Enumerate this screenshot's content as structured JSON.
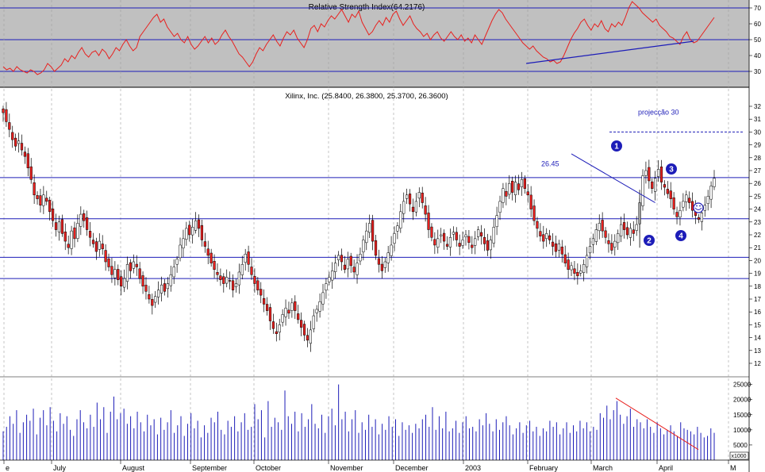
{
  "chart_data": [
    {
      "type": "line",
      "title": "Relative Strength Index(64.2176)",
      "yticks": [
        30,
        40,
        50,
        60,
        70
      ],
      "ylim": [
        20,
        75
      ],
      "reference_lines": [
        30,
        50,
        70
      ],
      "series": [
        {
          "color": "#e8201e",
          "values": [
            33,
            31,
            32,
            30,
            33,
            31,
            30,
            29,
            31,
            30,
            28,
            29,
            31,
            35,
            33,
            30,
            32,
            34,
            38,
            36,
            40,
            38,
            42,
            45,
            41,
            39,
            42,
            43,
            40,
            44,
            42,
            38,
            41,
            45,
            43,
            47,
            50,
            46,
            43,
            45,
            52,
            55,
            58,
            61,
            64,
            66,
            61,
            63,
            58,
            55,
            52,
            54,
            50,
            48,
            52,
            47,
            44,
            46,
            49,
            52,
            48,
            51,
            47,
            49,
            53,
            56,
            52,
            49,
            45,
            41,
            39,
            36,
            33,
            36,
            41,
            45,
            43,
            47,
            50,
            53,
            49,
            46,
            51,
            55,
            53,
            56,
            51,
            48,
            45,
            50,
            57,
            59,
            55,
            60,
            58,
            62,
            65,
            63,
            66,
            69,
            65,
            61,
            66,
            64,
            68,
            61,
            57,
            53,
            55,
            59,
            62,
            59,
            64,
            61,
            66,
            68,
            63,
            59,
            62,
            65,
            60,
            57,
            55,
            52,
            54,
            50,
            53,
            55,
            51,
            49,
            52,
            55,
            52,
            50,
            53,
            49,
            51,
            48,
            53,
            50,
            47,
            52,
            57,
            62,
            66,
            69,
            67,
            63,
            60,
            57,
            54,
            51,
            48,
            46,
            44,
            46,
            43,
            41,
            39,
            38,
            36,
            37,
            35,
            36,
            40,
            45,
            50,
            54,
            57,
            61,
            63,
            59,
            56,
            60,
            58,
            62,
            57,
            55,
            60,
            58,
            61,
            59,
            64,
            70,
            74,
            72,
            70,
            67,
            65,
            63,
            61,
            63,
            59,
            57,
            55,
            52,
            51,
            49,
            47,
            52,
            55,
            50,
            48,
            49,
            52,
            55,
            58,
            61,
            64
          ]
        }
      ],
      "trendline": {
        "from": [
          153,
          35
        ],
        "to": [
          202,
          49
        ],
        "color": "#1d1db8"
      }
    },
    {
      "type": "candlestick",
      "title": "Xilinx, Inc. (25.8400, 26.3800, 25.3700, 26.3600)",
      "ylim": [
        12,
        33
      ],
      "yticks": [
        12,
        13,
        14,
        15,
        16,
        17,
        18,
        19,
        20,
        21,
        22,
        23,
        24,
        25,
        26,
        27,
        28,
        29,
        30,
        31,
        32
      ],
      "xticks": [
        "e",
        "July",
        "August",
        "September",
        "October",
        "November",
        "December",
        "2003",
        "February",
        "March",
        "April",
        "M"
      ],
      "colors": {
        "up": "#ffffff",
        "down": "#e8201e",
        "outline": "#000000",
        "hline": "#1d1db8",
        "trend": "#1d1db8"
      },
      "horizontal_lines": [
        26.45,
        23.25,
        20.25,
        18.6
      ],
      "projection": {
        "value": 30,
        "label": "projecção 30"
      },
      "level_label": "26.45",
      "wave_labels": [
        "1",
        "2",
        "3",
        "4"
      ],
      "trendline": {
        "from": [
          173,
          28.3
        ],
        "to": [
          200,
          24.5
        ]
      },
      "closes": [
        31.5,
        30.8,
        30.2,
        29.4,
        28.9,
        29.3,
        28.6,
        28.1,
        27.2,
        26.3,
        25.1,
        24.8,
        24.3,
        25.1,
        24.6,
        23.8,
        23.1,
        22.4,
        23.0,
        22.1,
        21.5,
        21.0,
        22.3,
        21.7,
        22.9,
        23.6,
        23.1,
        22.4,
        21.8,
        21.3,
        20.7,
        21.5,
        20.9,
        19.9,
        19.5,
        18.9,
        19.3,
        18.5,
        18.0,
        18.6,
        19.7,
        19.2,
        19.9,
        19.5,
        18.6,
        18.0,
        17.6,
        17.0,
        16.5,
        17.2,
        17.7,
        18.1,
        17.6,
        18.2,
        18.9,
        19.5,
        20.1,
        21.2,
        21.7,
        22.5,
        22.0,
        22.6,
        23.1,
        22.5,
        21.6,
        21.1,
        20.4,
        19.8,
        19.3,
        18.9,
        18.5,
        18.2,
        18.7,
        18.4,
        17.7,
        18.2,
        19.1,
        19.7,
        20.5,
        19.7,
        18.9,
        18.2,
        17.7,
        17.3,
        16.6,
        16.1,
        15.3,
        14.7,
        14.3,
        15.0,
        15.8,
        16.3,
        15.9,
        16.7,
        16.1,
        15.4,
        14.8,
        14.2,
        13.8,
        14.6,
        15.7,
        16.2,
        16.8,
        17.5,
        18.2,
        18.7,
        19.2,
        19.8,
        20.4,
        19.9,
        19.3,
        20.1,
        19.6,
        19.1,
        19.8,
        20.5,
        21.6,
        22.3,
        22.9,
        21.5,
        20.4,
        19.7,
        19.2,
        19.9,
        20.6,
        21.2,
        22.1,
        22.7,
        23.8,
        24.6,
        25.1,
        24.4,
        23.8,
        24.6,
        25.3,
        24.5,
        23.6,
        22.4,
        21.8,
        21.2,
        21.7,
        22.0,
        21.5,
        21.1,
        21.8,
        22.2,
        21.6,
        21.1,
        21.6,
        22.0,
        21.4,
        21.0,
        21.7,
        22.4,
        21.9,
        21.3,
        20.8,
        21.6,
        22.6,
        23.5,
        24.6,
        25.6,
        25.0,
        26.0,
        25.3,
        26.1,
        25.5,
        26.3,
        25.6,
        25.1,
        24.0,
        23.1,
        22.5,
        21.9,
        21.5,
        22.1,
        21.6,
        21.1,
        20.7,
        21.3,
        20.5,
        19.8,
        19.3,
        19.6,
        19.0,
        18.8,
        19.2,
        19.7,
        20.4,
        21.1,
        21.7,
        22.4,
        22.9,
        22.3,
        21.8,
        21.3,
        20.8,
        21.5,
        22.1,
        22.8,
        22.4,
        22.0,
        22.5,
        22.1,
        22.8,
        24.5,
        26.6,
        27.0,
        26.2,
        25.6,
        26.4,
        27.1,
        26.1,
        25.7,
        25.2,
        24.8,
        24.0,
        23.4,
        23.9,
        24.6,
        25.1,
        24.5,
        23.9,
        23.5,
        23.2,
        23.7,
        24.3,
        25.0,
        25.8,
        26.4
      ]
    },
    {
      "type": "bar",
      "title": "",
      "ylim": [
        0,
        27000
      ],
      "yticks": [
        5000,
        10000,
        15000,
        20000,
        25000
      ],
      "unit_label": "x1000",
      "colors": {
        "bar": "#1d1db8",
        "trend": "#e8201e"
      },
      "values": [
        9500,
        11000,
        14500,
        12000,
        16500,
        9000,
        12500,
        15000,
        13000,
        17000,
        8500,
        14000,
        16500,
        11500,
        17500,
        13000,
        9500,
        15500,
        12000,
        14500,
        10000,
        8000,
        13500,
        16500,
        12500,
        10500,
        15000,
        11000,
        19000,
        13500,
        17500,
        9000,
        16000,
        21000,
        13500,
        15500,
        17000,
        12000,
        14500,
        10500,
        16000,
        12500,
        9500,
        15000,
        11500,
        13500,
        8500,
        14000,
        10000,
        12500,
        16500,
        9000,
        11500,
        14500,
        8000,
        12000,
        15500,
        10500,
        13000,
        7500,
        11500,
        9000,
        14000,
        12500,
        16000,
        10000,
        8500,
        13000,
        11000,
        14500,
        9500,
        12500,
        15500,
        10000,
        11000,
        18500,
        13500,
        16500,
        7500,
        19500,
        11000,
        14000,
        12500,
        10000,
        23000,
        14500,
        12000,
        16000,
        9500,
        15500,
        11000,
        13500,
        18500,
        12000,
        10500,
        15000,
        9000,
        14500,
        17000,
        11500,
        25000,
        13500,
        16000,
        9500,
        13500,
        16500,
        9000,
        12500,
        10000,
        15000,
        11000,
        13500,
        8500,
        12000,
        10000,
        14500,
        11000,
        13500,
        8000,
        12500,
        10000,
        11500,
        9000,
        12000,
        10500,
        13500,
        15000,
        11000,
        17500,
        10000,
        14500,
        10500,
        16000,
        9500,
        10500,
        13000,
        9000,
        12500,
        14500,
        10500,
        11000,
        9500,
        13500,
        11500,
        15500,
        12000,
        9500,
        13500,
        10000,
        12500,
        14500,
        11500,
        8500,
        10500,
        12500,
        9000,
        11500,
        13000,
        9500,
        11000,
        8000,
        10500,
        9500,
        13000,
        11000,
        12500,
        8500,
        10500,
        12500,
        9000,
        11500,
        9500,
        13000,
        10500,
        12500,
        9500,
        11000,
        10000,
        15500,
        14000,
        18000,
        13500,
        16500,
        19500,
        15000,
        12000,
        14500,
        17000,
        11000,
        13500,
        12500,
        10500,
        13500,
        11000,
        9000,
        12500,
        10500,
        8500,
        10000,
        11500,
        9500,
        8000,
        12500,
        10500,
        10000,
        9500,
        8500,
        11000,
        9000,
        7500,
        8000,
        10500,
        9000
      ]
    }
  ]
}
